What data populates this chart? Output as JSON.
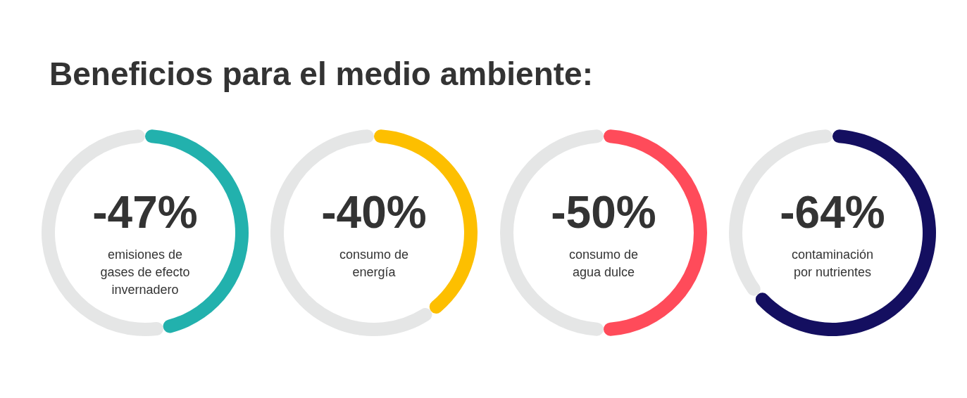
{
  "chart_data": [
    {
      "type": "other",
      "title": "Beneficios para el medio ambiente:"
    },
    {
      "type": "donut",
      "categories": [
        null,
        null
      ],
      "values": [
        47,
        53
      ],
      "colors": [
        "#22b1ad",
        "#e5e6e6"
      ],
      "annotations": [
        "-47%",
        "emisiones de",
        "gases de efecto",
        "invernadero"
      ]
    },
    {
      "type": "donut",
      "categories": [
        null,
        null
      ],
      "values": [
        40,
        60
      ],
      "colors": [
        "#fdbf00",
        "#e5e6e6"
      ],
      "annotations": [
        "-40%",
        "consumo de",
        "energía"
      ]
    },
    {
      "type": "donut",
      "categories": [
        null,
        null
      ],
      "values": [
        50,
        50
      ],
      "colors": [
        "#ff4b5a",
        "#e5e6e6"
      ],
      "annotations": [
        "-50%",
        "consumo de",
        "agua dulce"
      ]
    },
    {
      "type": "donut",
      "categories": [
        null,
        null
      ],
      "values": [
        64,
        36
      ],
      "colors": [
        "#140f60",
        "#e5e6e6"
      ],
      "annotations": [
        "-64%",
        "contaminación",
        "por nutrientes"
      ]
    }
  ]
}
